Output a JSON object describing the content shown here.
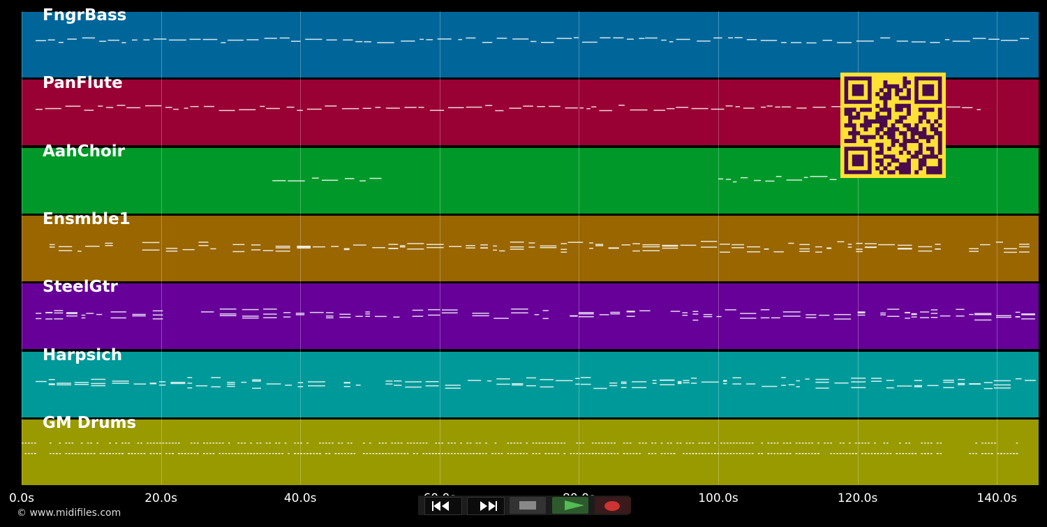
{
  "tracks": [
    {
      "name": "FngrBass",
      "color": "#006699",
      "note_color": "#ffffff"
    },
    {
      "name": "PanFlute",
      "color": "#990033",
      "note_color": "#ffffff"
    },
    {
      "name": "AahChoir",
      "color": "#009929",
      "note_color": "#ffffff"
    },
    {
      "name": "Ensmble1",
      "color": "#996600",
      "note_color": "#ffffff"
    },
    {
      "name": "SteelGtr",
      "color": "#660099",
      "note_color": "#ffffff"
    },
    {
      "name": "Harpsich",
      "color": "#009999",
      "note_color": "#ffffff"
    },
    {
      "name": "GM Drums",
      "color": "#999900",
      "note_color": "#ffffff"
    }
  ],
  "time_axis": {
    "unit": "s",
    "range": [
      0,
      146
    ],
    "ticks": [
      "0.0s",
      "20.0s",
      "40.0s",
      "60.0s",
      "80.0s",
      "100.0s",
      "120.0s",
      "140.0s"
    ],
    "tick_values": [
      0,
      20,
      40,
      60,
      80,
      100,
      120,
      140
    ]
  },
  "transport": {
    "rewind": "rewind-icon",
    "fast_forward": "fast-forward-icon",
    "stop": "stop-icon",
    "play": "play-icon",
    "record": "record-icon",
    "colors": {
      "stop": "#888888",
      "play": "#55bb55",
      "record": "#cc3333"
    }
  },
  "qr": {
    "colors": {
      "fg": "#4b0a4b",
      "bg": "#ffe135"
    }
  },
  "copyright": "© www.midifiles.com"
}
